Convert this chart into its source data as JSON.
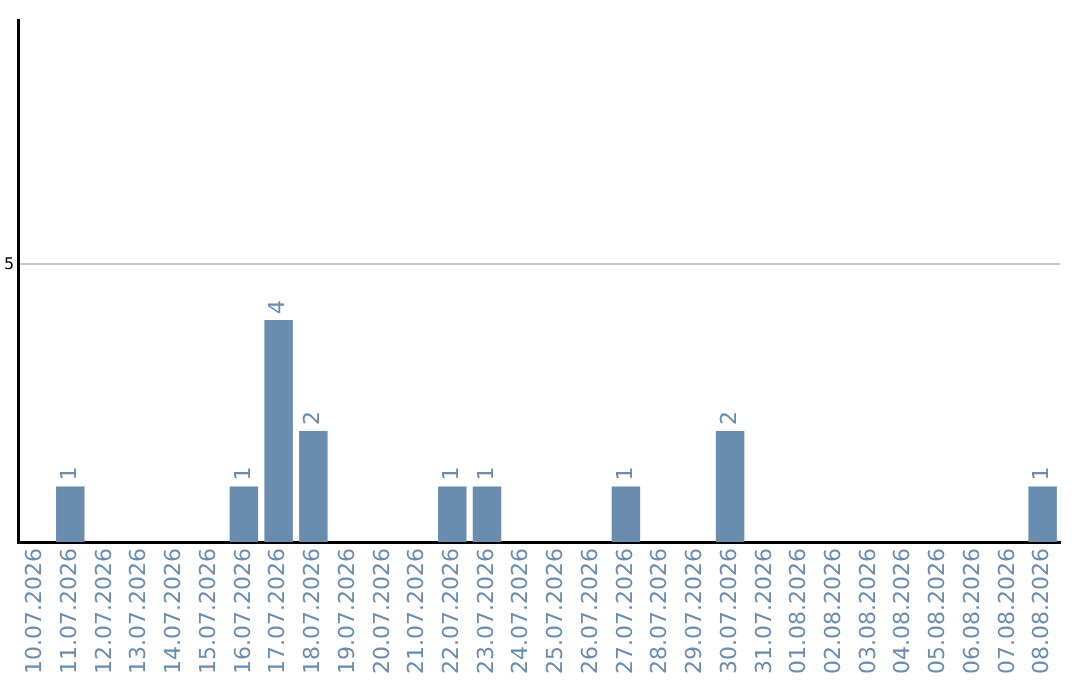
{
  "chart_data": {
    "type": "bar",
    "categories": [
      "10.07.2026",
      "11.07.2026",
      "12.07.2026",
      "13.07.2026",
      "14.07.2026",
      "15.07.2026",
      "16.07.2026",
      "17.07.2026",
      "18.07.2026",
      "19.07.2026",
      "20.07.2026",
      "21.07.2026",
      "22.07.2026",
      "23.07.2026",
      "24.07.2026",
      "25.07.2026",
      "26.07.2026",
      "27.07.2026",
      "28.07.2026",
      "29.07.2026",
      "30.07.2026",
      "31.07.2026",
      "01.08.2026",
      "02.08.2026",
      "03.08.2026",
      "04.08.2026",
      "05.08.2026",
      "06.08.2026",
      "07.08.2026",
      "08.08.2026"
    ],
    "values": [
      0,
      1,
      0,
      0,
      0,
      0,
      1,
      4,
      2,
      0,
      0,
      0,
      1,
      1,
      0,
      0,
      0,
      1,
      0,
      0,
      2,
      0,
      0,
      0,
      0,
      0,
      0,
      0,
      0,
      1
    ],
    "value_labels": [
      null,
      "1",
      null,
      null,
      null,
      null,
      "1",
      "4",
      "2",
      null,
      null,
      null,
      "1",
      "1",
      null,
      null,
      null,
      "1",
      null,
      null,
      "2",
      null,
      null,
      null,
      null,
      null,
      null,
      null,
      null,
      "1"
    ],
    "color": "#6a8caf",
    "ylim": [
      0,
      9.4
    ],
    "yticks": [
      5
    ],
    "grid": "y"
  }
}
